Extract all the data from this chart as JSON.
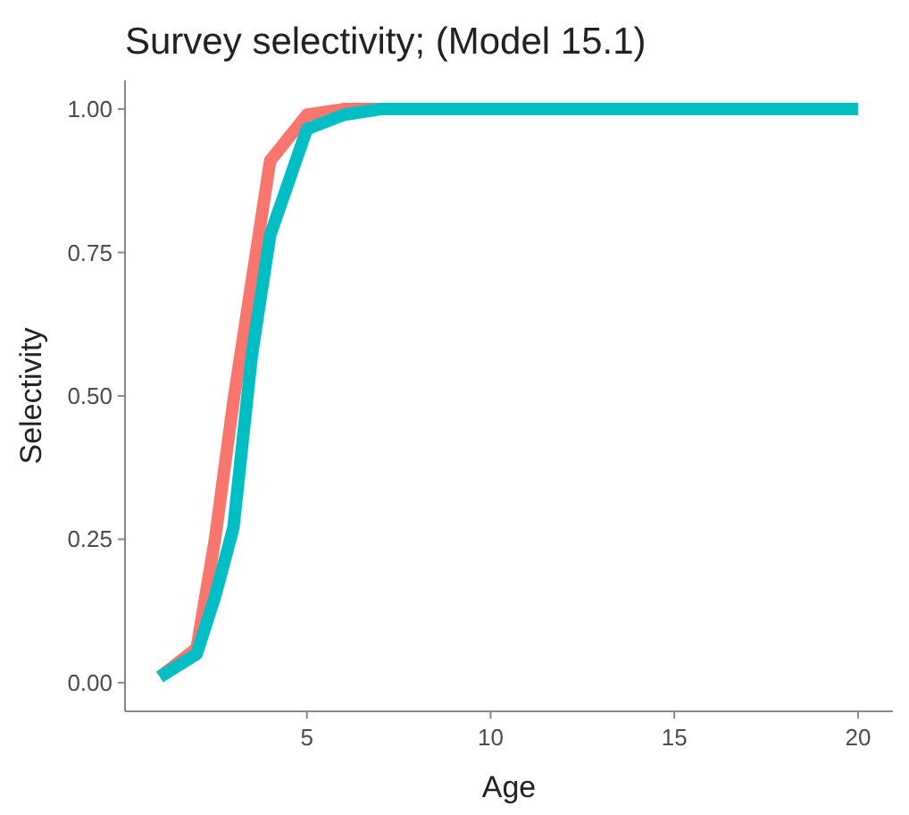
{
  "chart_data": {
    "type": "line",
    "title": "Survey selectivity; (Model 15.1)",
    "xlabel": "Age",
    "ylabel": "Selectivity",
    "x": [
      1,
      2,
      2.5,
      3,
      3.5,
      4,
      5,
      6,
      7,
      8,
      10,
      15,
      20
    ],
    "series": [
      {
        "color": "#f8766d",
        "values": [
          0.01,
          0.06,
          0.25,
          0.49,
          0.7,
          0.91,
          0.99,
          1.0,
          1.0,
          null,
          null,
          null,
          null
        ]
      },
      {
        "color": "#00bfc4",
        "values": [
          0.01,
          0.05,
          0.15,
          0.27,
          0.57,
          0.78,
          0.965,
          0.99,
          1.0,
          1.0,
          1.0,
          1.0,
          1.0
        ]
      }
    ],
    "xlim": [
      0.05,
      20.95
    ],
    "ylim": [
      -0.05,
      1.05
    ],
    "xticks": [
      5,
      10,
      15,
      20
    ],
    "yticks": [
      {
        "value": 0,
        "label": "0.00"
      },
      {
        "value": 0.25,
        "label": "0.25"
      },
      {
        "value": 0.5,
        "label": "0.50"
      },
      {
        "value": 0.75,
        "label": "0.75"
      },
      {
        "value": 1,
        "label": "1.00"
      }
    ],
    "grid": false,
    "line_style": "solid"
  }
}
